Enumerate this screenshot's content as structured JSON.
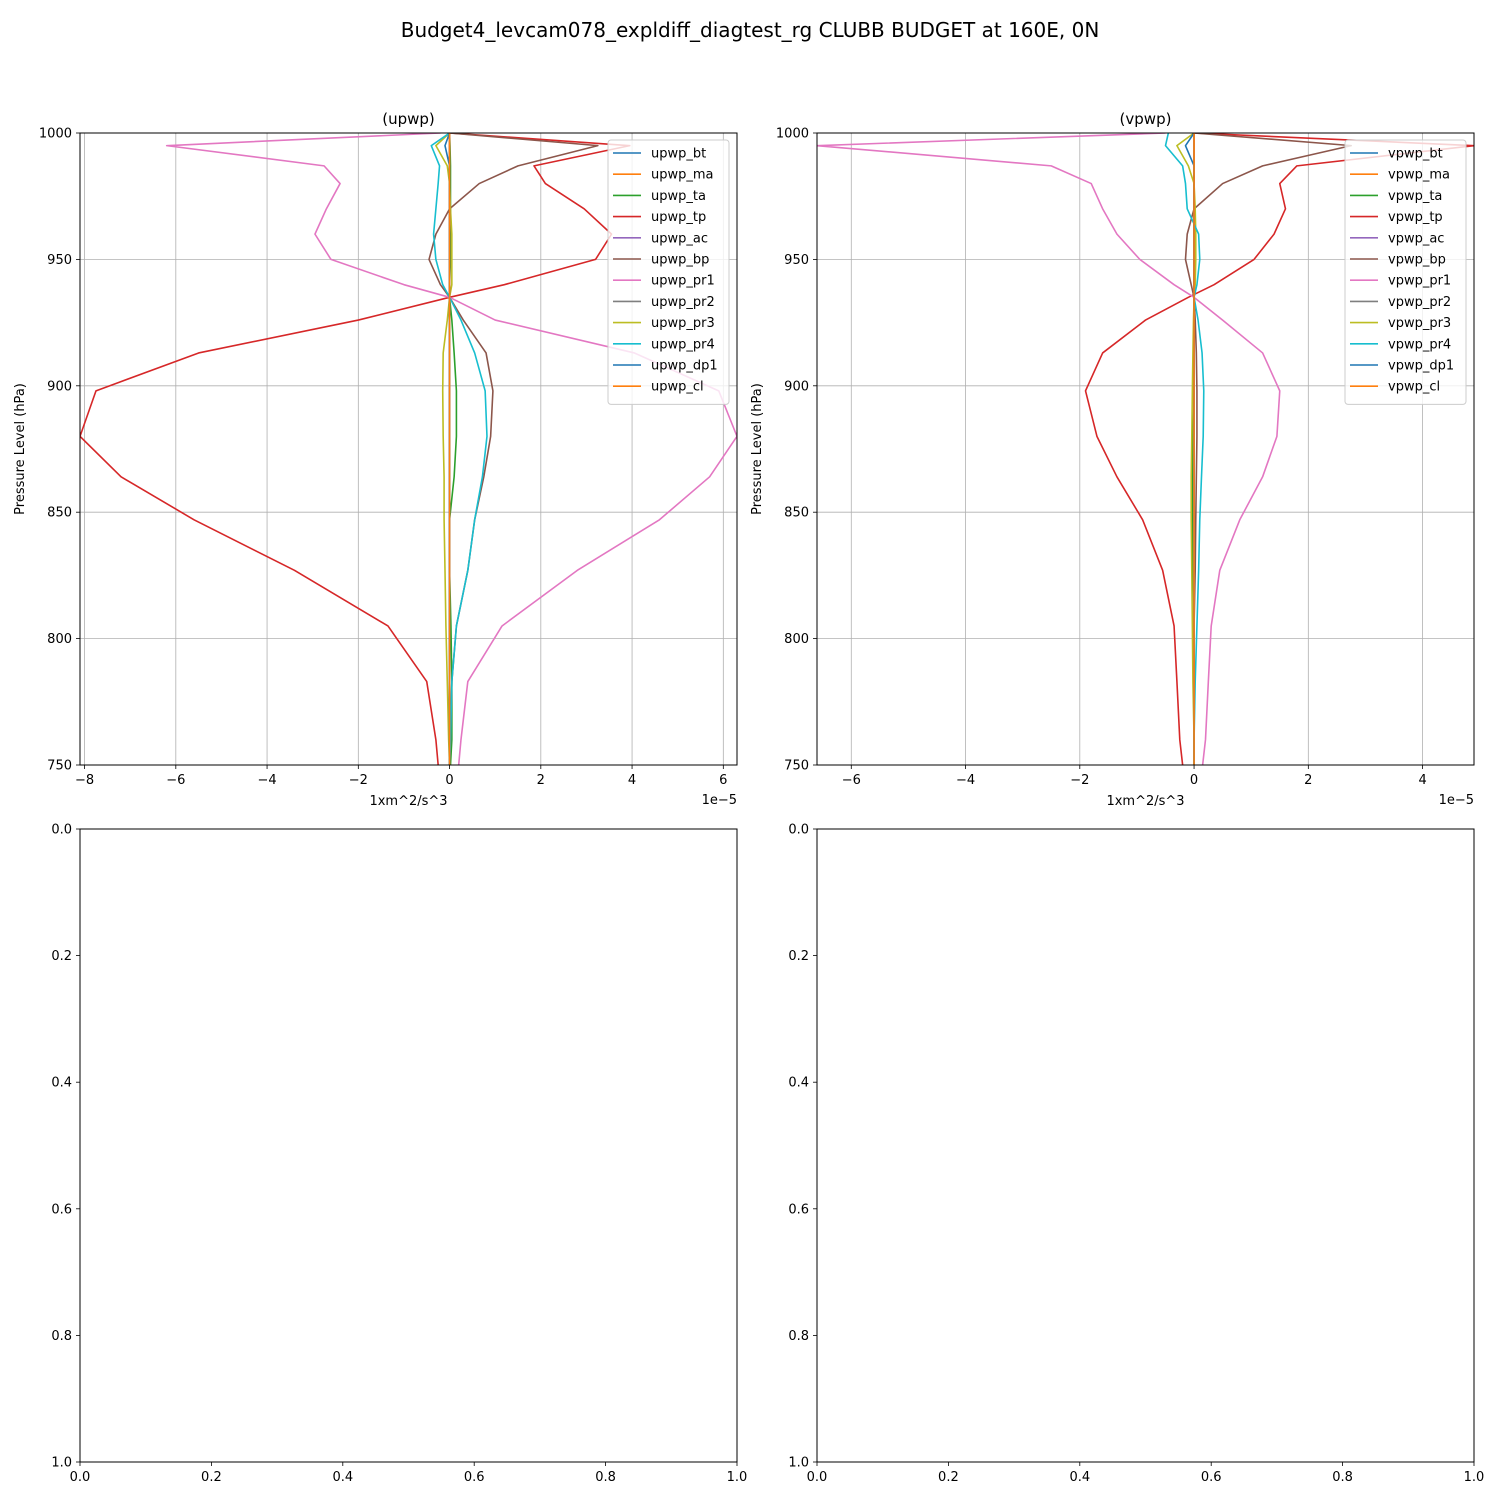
{
  "figure": {
    "suptitle": "Budget4_levcam078_expldiff_diagtest_rg CLUBB BUDGET at 160E, 0N"
  },
  "colors": {
    "bt": "#1f77b4",
    "ma": "#ff7f0e",
    "ta": "#2ca02c",
    "tp": "#d62728",
    "ac": "#9467bd",
    "bp": "#8c564b",
    "pr1": "#e377c2",
    "pr2": "#7f7f7f",
    "pr3": "#bcbd22",
    "pr4": "#17becf",
    "dp1": "#1f77b4",
    "cl": "#ff7f0e",
    "grid": "#b0b0b0"
  },
  "chart_data": [
    {
      "type": "line",
      "title": "(upwp)",
      "xlabel": "1xm^2/s^3",
      "ylabel": "Pressure Level (hPa)",
      "offset_text": "1e−5",
      "xlim": [
        -8.1,
        6.3
      ],
      "ylim": [
        1000,
        750
      ],
      "xticks": [
        -8,
        -6,
        -4,
        -2,
        0,
        2,
        4,
        6
      ],
      "xtick_labels": [
        "−8",
        "−6",
        "−4",
        "−2",
        "0",
        "2",
        "4",
        "6"
      ],
      "yticks": [
        750,
        800,
        850,
        900,
        950,
        1000
      ],
      "ytick_labels": [
        "750",
        "800",
        "850",
        "900",
        "950",
        "1000"
      ],
      "grid": true,
      "legend": "upper right",
      "levels": [
        750,
        760,
        783,
        805,
        827,
        847,
        864,
        880,
        898,
        913,
        926,
        935,
        940,
        950,
        960,
        970,
        980,
        987,
        995,
        1000
      ],
      "series": [
        {
          "name": "upwp_bt",
          "key": "bt",
          "values": [
            0.0,
            0.0,
            0.0,
            0.0,
            0.0,
            0.0,
            0.0,
            0.0,
            0.0,
            0.0,
            0.0,
            0.0,
            0.0,
            0.0,
            0.0,
            0.0,
            0.0,
            0.0,
            0.0,
            0.0
          ]
        },
        {
          "name": "upwp_ma",
          "key": "ma",
          "values": [
            0.0,
            0.0,
            0.0,
            0.0,
            0.0,
            0.0,
            0.0,
            0.0,
            0.0,
            0.0,
            0.0,
            0.0,
            0.0,
            0.0,
            0.0,
            0.0,
            0.0,
            0.0,
            0.0,
            0.0
          ]
        },
        {
          "name": "upwp_ta",
          "key": "ta",
          "values": [
            0.02,
            0.05,
            0.05,
            0.03,
            0.0,
            0.0,
            0.1,
            0.15,
            0.15,
            0.1,
            0.05,
            0.0,
            0.0,
            0.02,
            0.02,
            0.02,
            0.02,
            0.02,
            0.01,
            0.0
          ]
        },
        {
          "name": "upwp_tp",
          "key": "tp",
          "values": [
            -0.25,
            -0.3,
            -0.5,
            -1.35,
            -3.4,
            -5.6,
            -7.2,
            -8.1,
            -7.75,
            -5.5,
            -2.0,
            0.0,
            1.2,
            3.2,
            3.55,
            2.95,
            2.1,
            1.85,
            3.95,
            0.0
          ]
        },
        {
          "name": "upwp_ac",
          "key": "ac",
          "values": [
            0.0,
            0.0,
            0.0,
            0.0,
            0.0,
            0.0,
            0.0,
            0.0,
            0.0,
            0.0,
            0.0,
            0.0,
            0.0,
            0.0,
            0.0,
            0.0,
            0.0,
            0.0,
            0.0,
            0.0
          ]
        },
        {
          "name": "upwp_bp",
          "key": "bp",
          "values": [
            0.0,
            0.02,
            0.05,
            0.15,
            0.4,
            0.55,
            0.75,
            0.9,
            0.95,
            0.8,
            0.3,
            0.0,
            -0.2,
            -0.45,
            -0.3,
            0.0,
            0.65,
            1.5,
            3.25,
            0.0
          ]
        },
        {
          "name": "upwp_pr1",
          "key": "pr1",
          "values": [
            0.2,
            0.25,
            0.4,
            1.15,
            2.8,
            4.6,
            5.7,
            6.3,
            5.9,
            4.05,
            1.0,
            0.0,
            -1.0,
            -2.6,
            -2.95,
            -2.7,
            -2.4,
            -2.75,
            -6.2,
            -0.2
          ]
        },
        {
          "name": "upwp_pr2",
          "key": "pr2",
          "values": [
            0.0,
            0.0,
            0.0,
            0.0,
            0.0,
            0.0,
            0.0,
            0.0,
            0.0,
            0.0,
            0.0,
            0.0,
            0.0,
            0.0,
            0.0,
            0.0,
            0.0,
            0.0,
            0.0,
            0.0
          ]
        },
        {
          "name": "upwp_pr3",
          "key": "pr3",
          "values": [
            0.0,
            -0.02,
            -0.05,
            -0.08,
            -0.1,
            -0.12,
            -0.12,
            -0.14,
            -0.15,
            -0.14,
            -0.05,
            0.0,
            0.05,
            0.05,
            0.05,
            0.02,
            0.0,
            -0.05,
            -0.3,
            0.0
          ]
        },
        {
          "name": "upwp_pr4",
          "key": "pr4",
          "values": [
            0.0,
            0.02,
            0.05,
            0.15,
            0.4,
            0.55,
            0.72,
            0.82,
            0.78,
            0.55,
            0.25,
            0.0,
            -0.15,
            -0.3,
            -0.35,
            -0.3,
            -0.25,
            -0.22,
            -0.4,
            0.0
          ]
        },
        {
          "name": "upwp_dp1",
          "key": "dp1",
          "values": [
            0.0,
            0.0,
            0.0,
            0.0,
            0.0,
            0.0,
            0.0,
            0.0,
            0.0,
            0.0,
            0.0,
            0.0,
            0.0,
            0.0,
            0.0,
            0.0,
            0.0,
            0.0,
            -0.1,
            0.0
          ]
        },
        {
          "name": "upwp_cl",
          "key": "cl",
          "values": [
            0.0,
            0.0,
            0.0,
            0.0,
            0.0,
            0.0,
            0.0,
            0.0,
            0.0,
            0.0,
            0.0,
            0.0,
            0.0,
            0.0,
            0.0,
            0.0,
            0.0,
            0.0,
            0.0,
            0.0
          ]
        }
      ]
    },
    {
      "type": "line",
      "title": "(vpwp)",
      "xlabel": "1xm^2/s^3",
      "ylabel": "Pressure Level (hPa)",
      "offset_text": "1e−5",
      "xlim": [
        -6.6,
        4.9
      ],
      "ylim": [
        1000,
        750
      ],
      "xticks": [
        -6,
        -4,
        -2,
        0,
        2,
        4
      ],
      "xtick_labels": [
        "−6",
        "−4",
        "−2",
        "0",
        "2",
        "4"
      ],
      "yticks": [
        750,
        800,
        850,
        900,
        950,
        1000
      ],
      "ytick_labels": [
        "750",
        "800",
        "850",
        "900",
        "950",
        "1000"
      ],
      "grid": true,
      "legend": "upper right",
      "levels": [
        750,
        760,
        783,
        805,
        827,
        847,
        864,
        880,
        898,
        913,
        926,
        935,
        940,
        950,
        960,
        970,
        980,
        987,
        995,
        1000
      ],
      "series": [
        {
          "name": "vpwp_bt",
          "key": "bt",
          "values": [
            0.0,
            0.0,
            0.0,
            0.0,
            0.0,
            0.0,
            0.0,
            0.0,
            0.0,
            0.0,
            0.0,
            0.0,
            0.0,
            0.0,
            0.0,
            0.0,
            0.0,
            0.0,
            0.0,
            0.0
          ]
        },
        {
          "name": "vpwp_ma",
          "key": "ma",
          "values": [
            0.0,
            0.0,
            0.0,
            0.0,
            0.0,
            0.0,
            0.0,
            0.0,
            0.0,
            0.0,
            0.0,
            0.0,
            0.0,
            0.0,
            0.0,
            0.0,
            0.0,
            0.0,
            0.0,
            0.0
          ]
        },
        {
          "name": "vpwp_ta",
          "key": "ta",
          "values": [
            0.0,
            0.0,
            0.0,
            0.0,
            -0.02,
            -0.03,
            -0.03,
            -0.02,
            0.0,
            0.0,
            0.0,
            0.0,
            0.0,
            0.0,
            0.0,
            0.0,
            0.0,
            0.0,
            0.0,
            0.0
          ]
        },
        {
          "name": "vpwp_tp",
          "key": "tp",
          "values": [
            -0.2,
            -0.25,
            -0.3,
            -0.35,
            -0.55,
            -0.9,
            -1.35,
            -1.7,
            -1.9,
            -1.6,
            -0.85,
            -0.1,
            0.35,
            1.05,
            1.4,
            1.6,
            1.5,
            1.8,
            4.9,
            0.0
          ]
        },
        {
          "name": "vpwp_ac",
          "key": "ac",
          "values": [
            0.0,
            0.0,
            0.0,
            0.0,
            0.0,
            0.0,
            0.0,
            0.0,
            0.0,
            0.0,
            0.0,
            0.0,
            0.0,
            0.0,
            0.0,
            0.0,
            0.0,
            0.0,
            0.0,
            0.0
          ]
        },
        {
          "name": "vpwp_bp",
          "key": "bp",
          "values": [
            0.0,
            0.0,
            0.0,
            0.0,
            0.02,
            0.03,
            0.04,
            0.05,
            0.05,
            0.04,
            0.02,
            0.0,
            -0.05,
            -0.15,
            -0.12,
            0.0,
            0.5,
            1.2,
            2.75,
            0.0
          ]
        },
        {
          "name": "vpwp_pr1",
          "key": "pr1",
          "values": [
            0.15,
            0.2,
            0.25,
            0.3,
            0.45,
            0.8,
            1.2,
            1.45,
            1.5,
            1.2,
            0.5,
            0.0,
            -0.35,
            -0.95,
            -1.35,
            -1.6,
            -1.8,
            -2.5,
            -6.6,
            -0.5
          ]
        },
        {
          "name": "vpwp_pr2",
          "key": "pr2",
          "values": [
            0.0,
            0.0,
            0.0,
            0.0,
            0.0,
            0.0,
            0.0,
            0.0,
            0.0,
            0.0,
            0.0,
            0.0,
            0.0,
            0.0,
            0.0,
            0.0,
            0.0,
            0.0,
            0.0,
            0.0
          ]
        },
        {
          "name": "vpwp_pr3",
          "key": "pr3",
          "values": [
            0.0,
            0.0,
            -0.02,
            -0.03,
            -0.04,
            -0.05,
            -0.05,
            -0.04,
            -0.03,
            -0.02,
            -0.01,
            0.0,
            0.02,
            0.03,
            0.03,
            0.02,
            0.0,
            -0.1,
            -0.3,
            0.0
          ]
        },
        {
          "name": "vpwp_pr4",
          "key": "pr4",
          "values": [
            0.0,
            0.0,
            0.02,
            0.05,
            0.08,
            0.1,
            0.13,
            0.16,
            0.17,
            0.14,
            0.07,
            0.0,
            0.05,
            0.1,
            0.08,
            -0.12,
            -0.15,
            -0.2,
            -0.5,
            -0.45
          ]
        },
        {
          "name": "vpwp_dp1",
          "key": "dp1",
          "values": [
            0.0,
            0.0,
            0.0,
            0.0,
            0.0,
            0.0,
            0.0,
            0.0,
            0.0,
            0.0,
            0.0,
            0.0,
            0.0,
            0.0,
            0.0,
            0.0,
            0.0,
            0.0,
            -0.15,
            0.0
          ]
        },
        {
          "name": "vpwp_cl",
          "key": "cl",
          "values": [
            0.0,
            0.0,
            0.0,
            0.0,
            0.0,
            0.0,
            0.0,
            0.0,
            0.0,
            0.0,
            0.0,
            0.0,
            0.0,
            0.0,
            0.0,
            0.0,
            0.0,
            0.0,
            0.0,
            0.0
          ]
        }
      ]
    },
    {
      "type": "line",
      "title": "",
      "xlim": [
        0,
        1
      ],
      "ylim": [
        0,
        1
      ],
      "xticks": [
        0,
        0.2,
        0.4,
        0.6,
        0.8,
        1.0
      ],
      "xtick_labels": [
        "0.0",
        "0.2",
        "0.4",
        "0.6",
        "0.8",
        "1.0"
      ],
      "yticks": [
        0,
        0.2,
        0.4,
        0.6,
        0.8,
        1.0
      ],
      "ytick_labels": [
        "0.0",
        "0.2",
        "0.4",
        "0.6",
        "0.8",
        "1.0"
      ],
      "grid": false,
      "series": []
    },
    {
      "type": "line",
      "title": "",
      "xlim": [
        0,
        1
      ],
      "ylim": [
        0,
        1
      ],
      "xticks": [
        0,
        0.2,
        0.4,
        0.6,
        0.8,
        1.0
      ],
      "xtick_labels": [
        "0.0",
        "0.2",
        "0.4",
        "0.6",
        "0.8",
        "1.0"
      ],
      "yticks": [
        0,
        0.2,
        0.4,
        0.6,
        0.8,
        1.0
      ],
      "ytick_labels": [
        "0.0",
        "0.2",
        "0.4",
        "0.6",
        "0.8",
        "1.0"
      ],
      "grid": false,
      "series": []
    }
  ]
}
